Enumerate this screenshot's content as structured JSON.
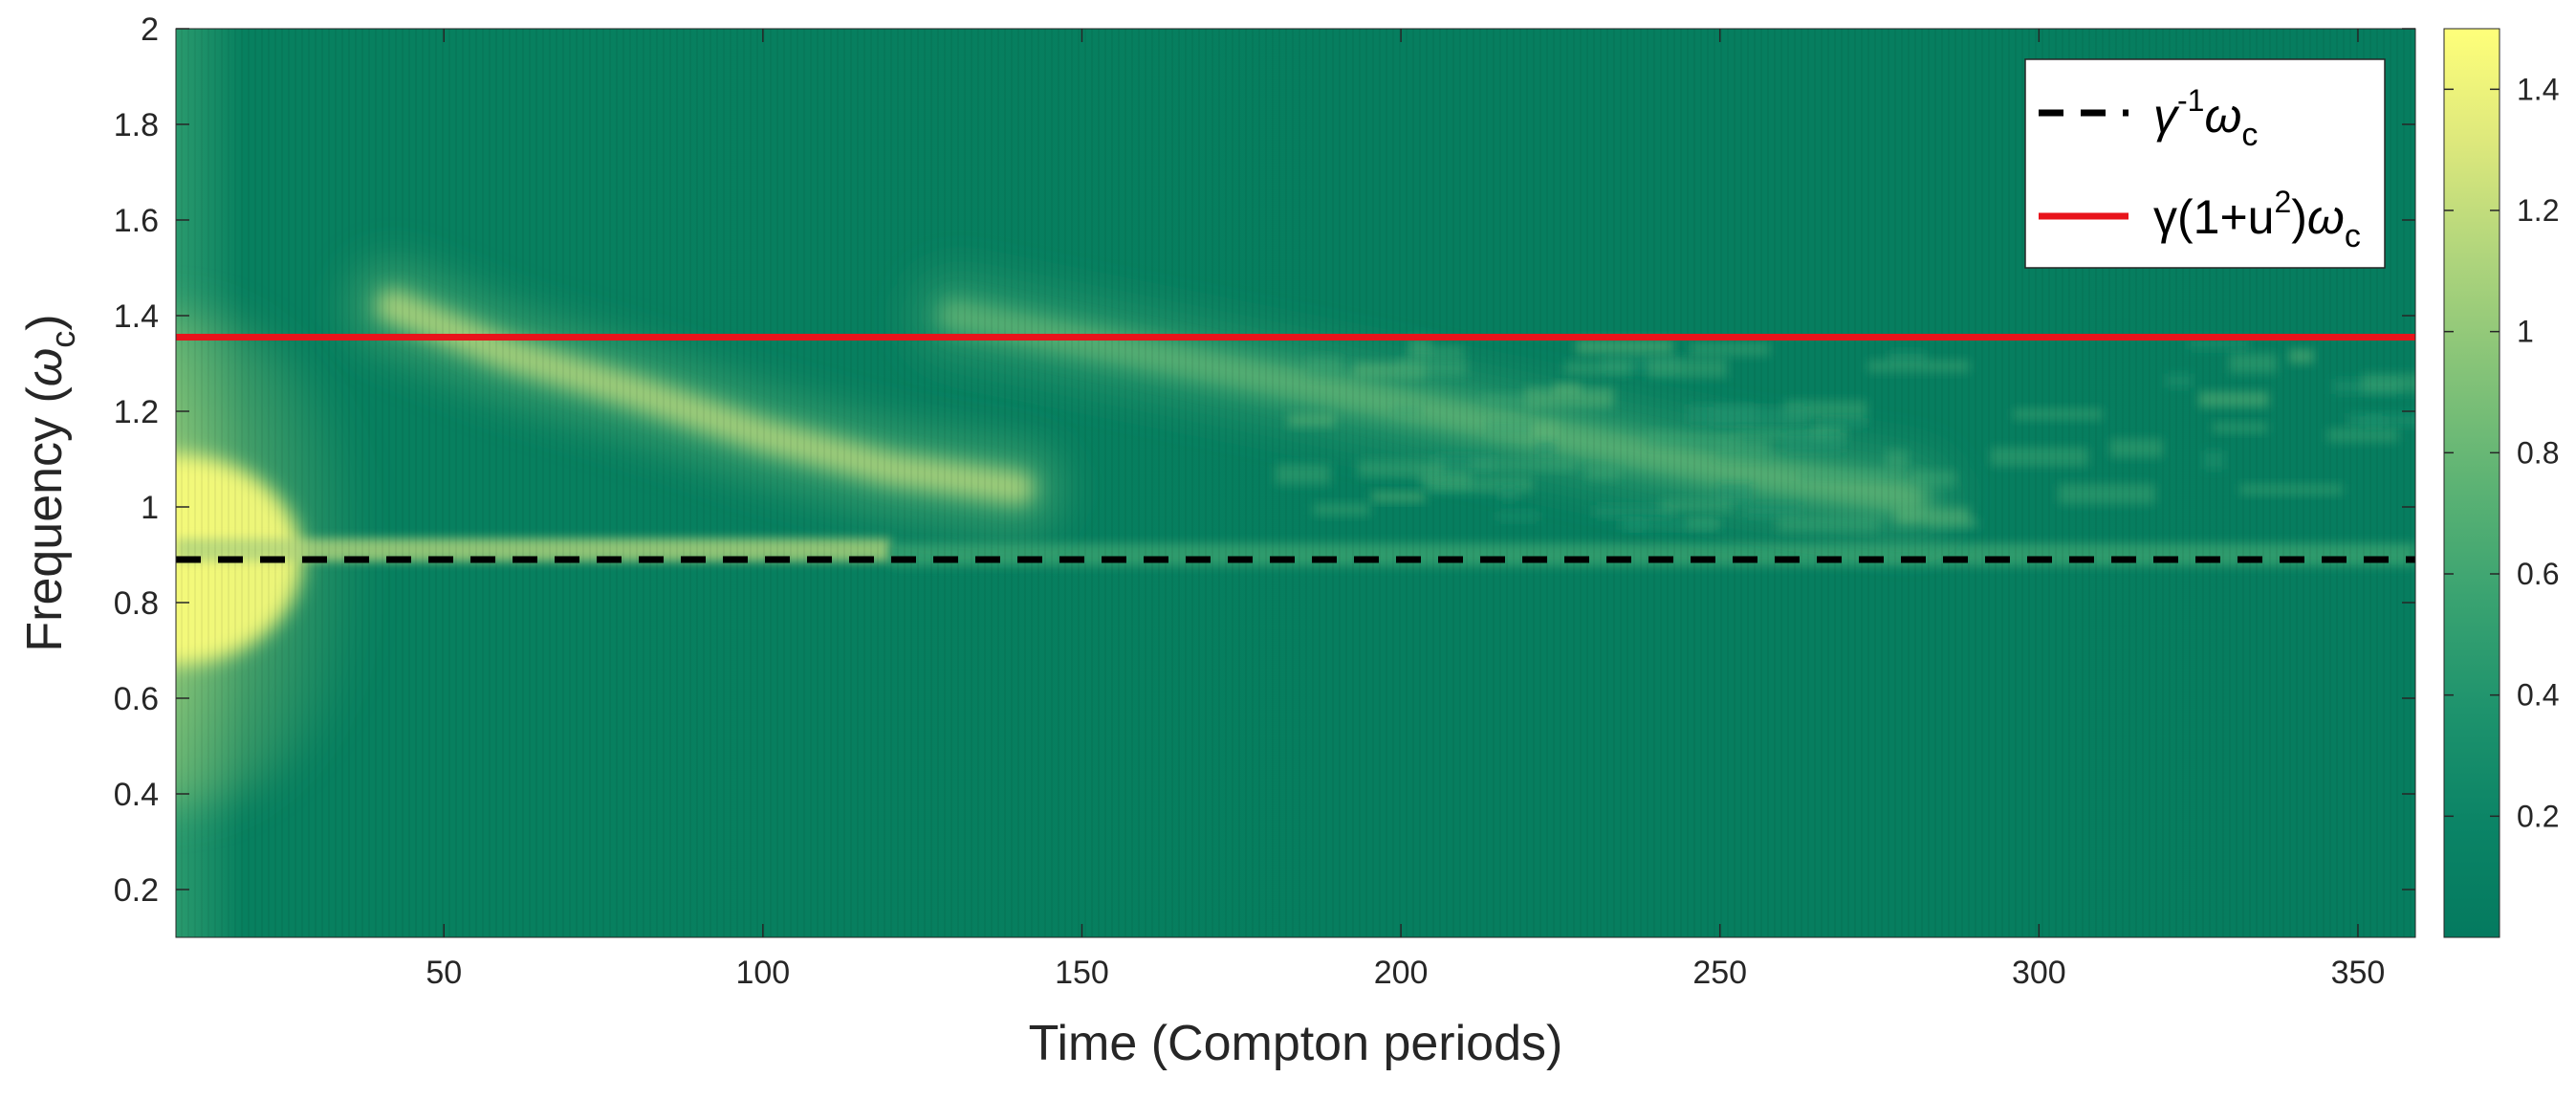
{
  "chart_data": {
    "type": "heatmap",
    "xlabel": "Time (Compton periods)",
    "ylabel_main": "Frequency (",
    "ylabel_symbol": "ω",
    "ylabel_sub": "c",
    "ylabel_close": ")",
    "xlim": [
      8,
      359
    ],
    "ylim": [
      0.1,
      2
    ],
    "x_ticks": [
      50,
      100,
      150,
      200,
      250,
      300,
      350
    ],
    "y_ticks": [
      0.2,
      0.4,
      0.6,
      0.8,
      1,
      1.2,
      1.4,
      1.6,
      1.8,
      2
    ],
    "colorbar": {
      "range": [
        0,
        1.5
      ],
      "ticks": [
        0.2,
        0.4,
        0.6,
        0.8,
        1,
        1.2,
        1.4
      ],
      "colors": [
        "#047a5f",
        "#0b8466",
        "#1e936d",
        "#3aa371",
        "#5db374",
        "#85c378",
        "#b0d57c",
        "#dde87c",
        "#ffff7a"
      ]
    },
    "reference_lines": [
      {
        "name_base": "γ",
        "name_sup": "-1",
        "name_sym": "ω",
        "name_sub": "c",
        "y": 0.89,
        "color": "#000000",
        "style": "dashed"
      },
      {
        "name_base": "γ(1+u",
        "name_sup": "2",
        "name_close": ")",
        "name_sym": "ω",
        "name_sub": "c",
        "y": 1.355,
        "color": "#e8141b",
        "style": "solid"
      }
    ],
    "legend_position": "top-right",
    "grid": false,
    "features": [
      {
        "description_kind": "band",
        "x": [
          8,
          30
        ],
        "y_center": 0.89,
        "intensity": 1.5
      },
      {
        "description_kind": "ridge",
        "x": [
          8,
          120
        ],
        "y_center": 0.91,
        "intensity": 1.1
      },
      {
        "description_kind": "ridge",
        "x": [
          120,
          359
        ],
        "y_center": 0.9,
        "intensity": 0.55
      },
      {
        "description_kind": "arc",
        "points": [
          [
            42,
            1.42
          ],
          [
            60,
            1.32
          ],
          [
            80,
            1.24
          ],
          [
            100,
            1.15
          ],
          [
            120,
            1.08
          ],
          [
            140,
            1.04
          ]
        ],
        "intensity": 1.05
      },
      {
        "description_kind": "arc",
        "points": [
          [
            130,
            1.4
          ],
          [
            160,
            1.32
          ],
          [
            190,
            1.24
          ],
          [
            220,
            1.16
          ],
          [
            250,
            1.08
          ],
          [
            280,
            1.02
          ]
        ],
        "intensity": 0.75
      },
      {
        "description_kind": "patches",
        "x": [
          180,
          359
        ],
        "y": [
          0.95,
          1.35
        ],
        "intensity": 0.6
      }
    ]
  }
}
